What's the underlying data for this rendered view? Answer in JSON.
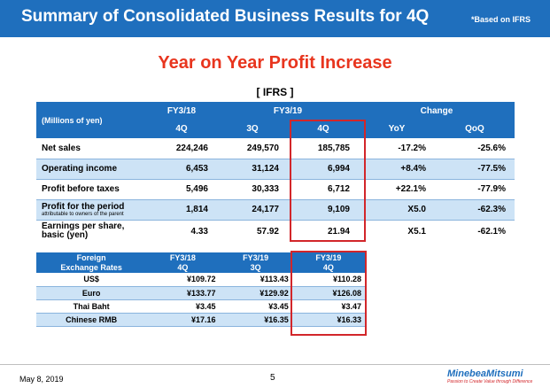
{
  "header": {
    "title": "Summary of Consolidated Business Results for 4Q",
    "note": "*Based on IFRS"
  },
  "subtitle": "Year on Year Profit Increase",
  "standard_label": "[ IFRS ]",
  "results_table": {
    "unit_label": "(Millions of yen)",
    "group_headers": [
      "FY3/18",
      "FY3/19",
      "Change"
    ],
    "sub_headers": [
      "4Q",
      "3Q",
      "4Q",
      "YoY",
      "QoQ"
    ],
    "rows": [
      {
        "label": "Net sales",
        "values": [
          "224,246",
          "249,570",
          "185,785",
          "-17.2%",
          "-25.6%"
        ]
      },
      {
        "label": "Operating income",
        "values": [
          "6,453",
          "31,124",
          "6,994",
          "+8.4%",
          "-77.5%"
        ]
      },
      {
        "label": "Profit before taxes",
        "values": [
          "5,496",
          "30,333",
          "6,712",
          "+22.1%",
          "-77.9%"
        ]
      },
      {
        "label": "Profit for the period",
        "sublabel": "attributable to owners of the parent",
        "values": [
          "1,814",
          "24,177",
          "9,109",
          "X5.0",
          "-62.3%"
        ]
      },
      {
        "label": "Earnings per share,",
        "label2": "basic (yen)",
        "values": [
          "4.33",
          "57.92",
          "21.94",
          "X5.1",
          "-62.1%"
        ]
      }
    ]
  },
  "fx_table": {
    "header_label_1": "Foreign",
    "header_label_2": "Exchange Rates",
    "columns": [
      {
        "fy": "FY3/18",
        "q": "4Q"
      },
      {
        "fy": "FY3/19",
        "q": "3Q"
      },
      {
        "fy": "FY3/19",
        "q": "4Q"
      }
    ],
    "rows": [
      {
        "label": "US$",
        "values": [
          "¥109.72",
          "¥113.43",
          "¥110.28"
        ]
      },
      {
        "label": "Euro",
        "values": [
          "¥133.77",
          "¥129.92",
          "¥126.08"
        ]
      },
      {
        "label": "Thai Baht",
        "values": [
          "¥3.45",
          "¥3.45",
          "¥3.47"
        ]
      },
      {
        "label": "Chinese RMB",
        "values": [
          "¥17.16",
          "¥16.35",
          "¥16.33"
        ]
      }
    ]
  },
  "footer": {
    "date": "May 8, 2019",
    "page_number": "5",
    "logo": "MinebeaMitsumi",
    "tagline": "Passion to Create Value through Difference"
  },
  "colors": {
    "header_blue": "#1f6fbd",
    "title_red": "#e8351e",
    "highlight_red": "#d2262a",
    "row_light_blue": "#cde3f6"
  }
}
